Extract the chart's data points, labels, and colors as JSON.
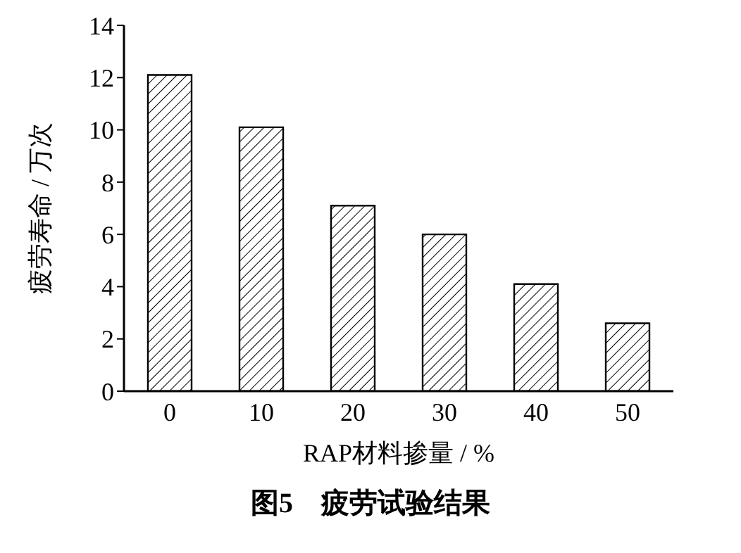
{
  "chart_data": {
    "type": "bar",
    "title": "图5　疲劳试验结果",
    "xlabel": "RAP材料掺量 / %",
    "ylabel": "疲劳寿命 / 万次",
    "categories": [
      "0",
      "10",
      "20",
      "30",
      "40",
      "50"
    ],
    "values": [
      12.1,
      10.1,
      7.1,
      6.0,
      4.1,
      2.6
    ],
    "color": "#000000",
    "ylim": [
      0,
      14
    ],
    "yticks": [
      0,
      2,
      4,
      6,
      8,
      10,
      12,
      14
    ],
    "grid": false
  }
}
